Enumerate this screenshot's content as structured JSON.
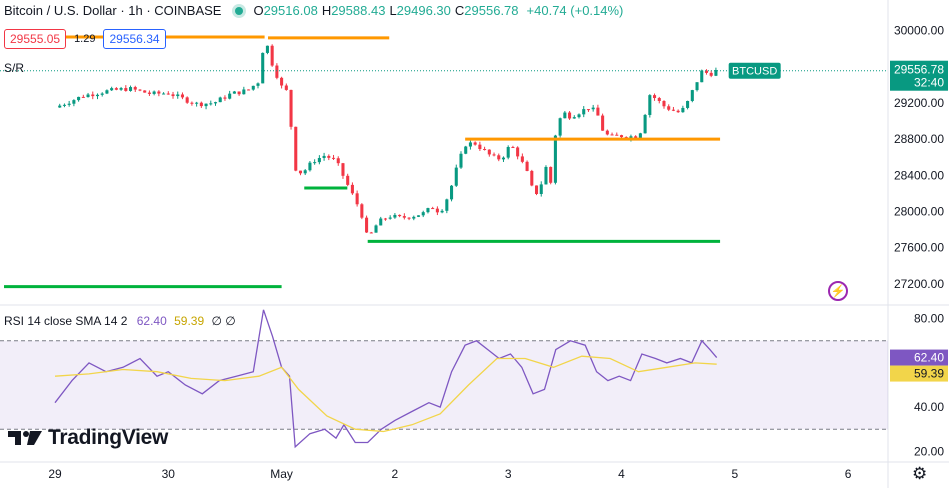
{
  "legend": {
    "title": "Bitcoin / U.S. Dollar · 1h · COINBASE",
    "o_label": "O",
    "o": "29516.08",
    "h_label": "H",
    "h": "29588.43",
    "l_label": "L",
    "l": "29496.30",
    "c_label": "C",
    "c": "29556.78",
    "change": "+40.74 (+0.14%)"
  },
  "quote": {
    "bid": "29555.05",
    "spread": "1.29",
    "ask": "29556.34"
  },
  "sr_label": "S/R",
  "rsi_legend": {
    "name": "RSI 14 close SMA 14 2",
    "rsi": "62.40",
    "sma": "59.39",
    "extra": "∅ ∅"
  },
  "brand": "TradingView",
  "colors": {
    "up": "#089981",
    "down": "#f23645",
    "rsi": "#7e57c2",
    "sma": "#f2d54a",
    "resistance": "#ff9800",
    "support": "#00b33c",
    "accent": "#2962ff"
  },
  "icons": [
    "tradingview-logo-icon",
    "lightning-icon",
    "gear-icon",
    "status-dot-icon"
  ],
  "chart_data": [
    {
      "type": "candlestick",
      "title": "Bitcoin / U.S. Dollar · 1h · COINBASE",
      "symbol_label": "BTCUSD",
      "last_price": "29556.78",
      "countdown": "32:40",
      "ylim": [
        27000,
        30250
      ],
      "y_ticks": [
        "30000.00",
        "29200.00",
        "28800.00",
        "28400.00",
        "28000.00",
        "27600.00",
        "27200.00"
      ],
      "x_ticks": [
        "29",
        "30",
        "May",
        "2",
        "3",
        "4",
        "5",
        "6"
      ],
      "price_path": [
        [
          0.0,
          29150
        ],
        [
          0.25,
          29280
        ],
        [
          0.45,
          29330
        ],
        [
          0.65,
          29360
        ],
        [
          0.85,
          29300
        ],
        [
          1.0,
          29310
        ],
        [
          1.1,
          29260
        ],
        [
          1.25,
          29190
        ],
        [
          1.4,
          29200
        ],
        [
          1.55,
          29300
        ],
        [
          1.7,
          29340
        ],
        [
          1.8,
          29440
        ],
        [
          1.85,
          29940
        ],
        [
          1.92,
          29620
        ],
        [
          2.0,
          29380
        ],
        [
          2.07,
          29300
        ],
        [
          2.1,
          28500
        ],
        [
          2.18,
          28420
        ],
        [
          2.28,
          28560
        ],
        [
          2.38,
          28620
        ],
        [
          2.48,
          28560
        ],
        [
          2.56,
          28350
        ],
        [
          2.62,
          28200
        ],
        [
          2.7,
          28000
        ],
        [
          2.76,
          27690
        ],
        [
          2.85,
          27880
        ],
        [
          2.95,
          27950
        ],
        [
          3.05,
          27930
        ],
        [
          3.15,
          27950
        ],
        [
          3.25,
          27980
        ],
        [
          3.33,
          28050
        ],
        [
          3.4,
          27990
        ],
        [
          3.48,
          28200
        ],
        [
          3.55,
          28500
        ],
        [
          3.62,
          28740
        ],
        [
          3.7,
          28760
        ],
        [
          3.78,
          28680
        ],
        [
          3.86,
          28600
        ],
        [
          3.94,
          28580
        ],
        [
          4.02,
          28740
        ],
        [
          4.1,
          28600
        ],
        [
          4.17,
          28420
        ],
        [
          4.23,
          28180
        ],
        [
          4.28,
          28250
        ],
        [
          4.33,
          28500
        ],
        [
          4.38,
          28300
        ],
        [
          4.42,
          28900
        ],
        [
          4.48,
          29100
        ],
        [
          4.55,
          29050
        ],
        [
          4.63,
          29100
        ],
        [
          4.71,
          29150
        ],
        [
          4.78,
          29100
        ],
        [
          4.84,
          28880
        ],
        [
          4.9,
          28820
        ],
        [
          4.98,
          28840
        ],
        [
          5.05,
          28830
        ],
        [
          5.12,
          28830
        ],
        [
          5.18,
          28900
        ],
        [
          5.24,
          29300
        ],
        [
          5.3,
          29250
        ],
        [
          5.38,
          29160
        ],
        [
          5.45,
          29120
        ],
        [
          5.52,
          29090
        ],
        [
          5.58,
          29200
        ],
        [
          5.65,
          29400
        ],
        [
          5.71,
          29550
        ],
        [
          5.78,
          29520
        ],
        [
          5.84,
          29557
        ]
      ],
      "support_resistance": [
        {
          "kind": "resistance",
          "from": -0.45,
          "to": 1.85,
          "price": 29930
        },
        {
          "kind": "resistance",
          "from": 1.88,
          "to": 2.95,
          "price": 29920
        },
        {
          "kind": "resistance",
          "from": 3.62,
          "to": 5.87,
          "price": 28800
        },
        {
          "kind": "support",
          "from": -0.45,
          "to": 2.0,
          "price": 27170
        },
        {
          "kind": "support",
          "from": 2.2,
          "to": 2.58,
          "price": 28260
        },
        {
          "kind": "support",
          "from": 2.76,
          "to": 5.87,
          "price": 27670
        }
      ]
    },
    {
      "type": "line",
      "title": "RSI 14 close SMA 14 2",
      "ylim": [
        17,
        83
      ],
      "y_ticks": [
        "80.00",
        "40.00",
        "20.00"
      ],
      "bands": [
        70,
        30
      ],
      "last_rsi": "62.40",
      "last_sma": "59.39",
      "series": [
        {
          "name": "RSI",
          "values": [
            [
              0.0,
              42
            ],
            [
              0.15,
              52
            ],
            [
              0.3,
              60
            ],
            [
              0.45,
              56
            ],
            [
              0.6,
              58
            ],
            [
              0.75,
              62
            ],
            [
              0.9,
              54
            ],
            [
              1.0,
              56
            ],
            [
              1.15,
              50
            ],
            [
              1.3,
              46
            ],
            [
              1.45,
              52
            ],
            [
              1.6,
              54
            ],
            [
              1.75,
              56
            ],
            [
              1.84,
              84
            ],
            [
              1.92,
              72
            ],
            [
              2.0,
              58
            ],
            [
              2.07,
              54
            ],
            [
              2.12,
              22
            ],
            [
              2.25,
              28
            ],
            [
              2.38,
              30
            ],
            [
              2.48,
              26
            ],
            [
              2.55,
              32
            ],
            [
              2.65,
              24
            ],
            [
              2.76,
              24
            ],
            [
              2.88,
              30
            ],
            [
              3.0,
              34
            ],
            [
              3.15,
              38
            ],
            [
              3.3,
              42
            ],
            [
              3.4,
              40
            ],
            [
              3.5,
              56
            ],
            [
              3.62,
              68
            ],
            [
              3.72,
              70
            ],
            [
              3.82,
              66
            ],
            [
              3.92,
              62
            ],
            [
              4.02,
              64
            ],
            [
              4.12,
              58
            ],
            [
              4.22,
              46
            ],
            [
              4.32,
              48
            ],
            [
              4.42,
              66
            ],
            [
              4.55,
              70
            ],
            [
              4.68,
              68
            ],
            [
              4.78,
              56
            ],
            [
              4.88,
              52
            ],
            [
              4.98,
              54
            ],
            [
              5.08,
              52
            ],
            [
              5.18,
              64
            ],
            [
              5.3,
              62
            ],
            [
              5.4,
              60
            ],
            [
              5.52,
              62
            ],
            [
              5.62,
              60
            ],
            [
              5.71,
              70
            ],
            [
              5.78,
              66
            ],
            [
              5.84,
              62.4
            ]
          ]
        },
        {
          "name": "SMA",
          "values": [
            [
              0.0,
              54
            ],
            [
              0.3,
              55
            ],
            [
              0.6,
              57
            ],
            [
              0.9,
              56
            ],
            [
              1.2,
              53
            ],
            [
              1.5,
              52
            ],
            [
              1.8,
              54
            ],
            [
              2.0,
              58
            ],
            [
              2.15,
              48
            ],
            [
              2.4,
              36
            ],
            [
              2.65,
              30
            ],
            [
              2.9,
              29
            ],
            [
              3.15,
              32
            ],
            [
              3.4,
              37
            ],
            [
              3.65,
              50
            ],
            [
              3.9,
              62
            ],
            [
              4.15,
              62
            ],
            [
              4.4,
              58
            ],
            [
              4.65,
              63
            ],
            [
              4.9,
              62
            ],
            [
              5.15,
              56
            ],
            [
              5.4,
              58
            ],
            [
              5.65,
              60
            ],
            [
              5.84,
              59.39
            ]
          ]
        }
      ]
    }
  ]
}
